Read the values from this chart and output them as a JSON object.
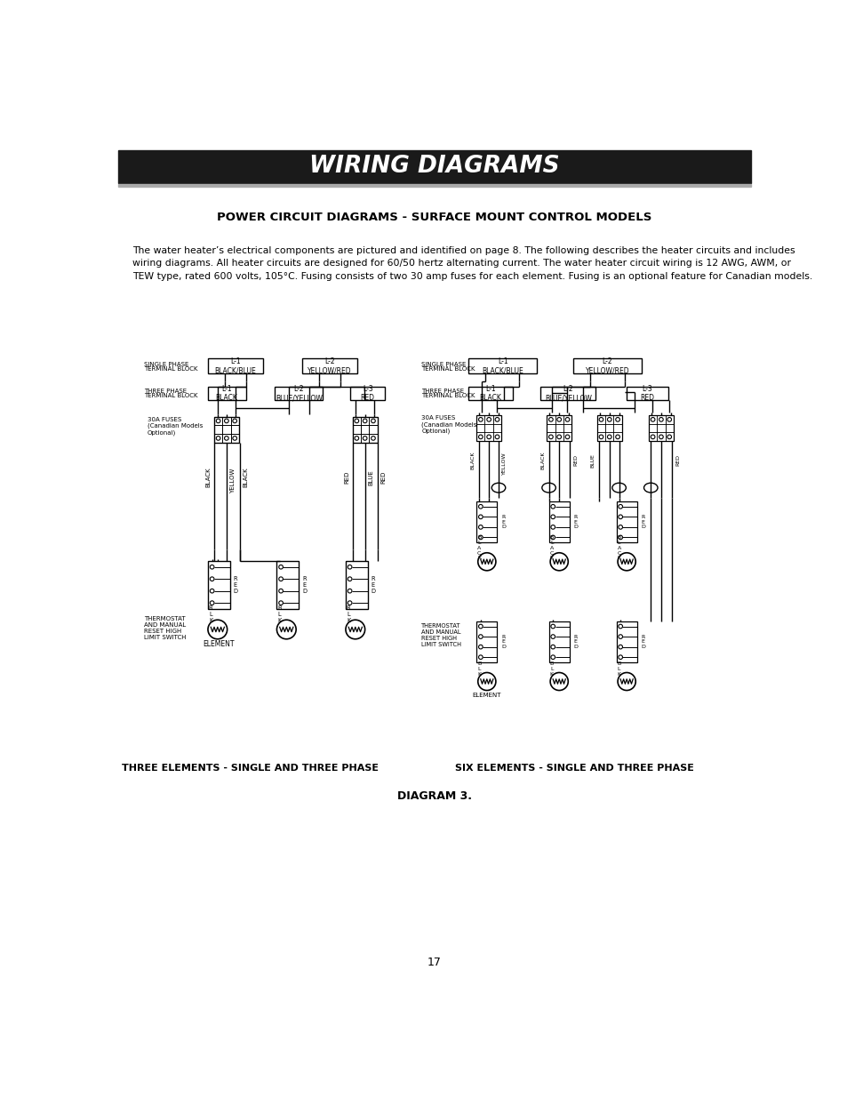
{
  "title": "WIRING DIAGRAMS",
  "title_bg": "#1a1a1a",
  "title_color": "#ffffff",
  "subtitle": "POWER CIRCUIT DIAGRAMS - SURFACE MOUNT CONTROL MODELS",
  "body_text": "The water heater’s electrical components are pictured and identified on page 8. The following describes the heater circuits and includes\nwiring diagrams. All heater circuits are designed for 60/50 hertz alternating current. The water heater circuit wiring is 12 AWG, AWM, or\nTEW type, rated 600 volts, 105°C. Fusing consists of two 30 amp fuses for each element. Fusing is an optional feature for Canadian models.",
  "caption_left": "THREE ELEMENTS - SINGLE AND THREE PHASE",
  "caption_right": "SIX ELEMENTS - SINGLE AND THREE PHASE",
  "diagram_caption": "DIAGRAM 3.",
  "page_number": "17",
  "bg_color": "#ffffff",
  "line_color": "#000000",
  "text_color": "#000000"
}
